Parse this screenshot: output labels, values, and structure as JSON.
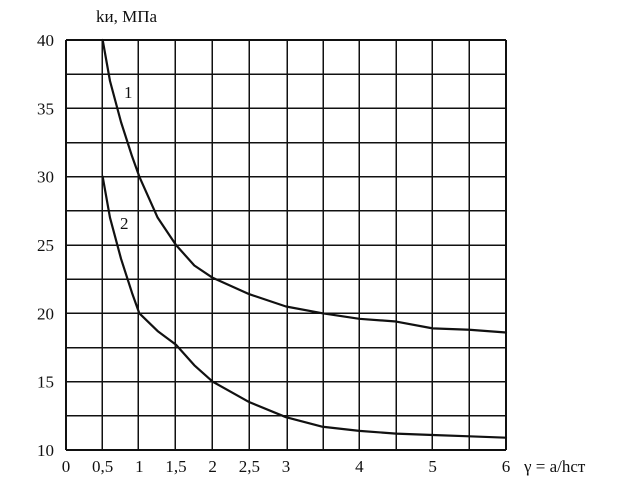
{
  "chart_data": {
    "type": "line",
    "title": "",
    "xlabel": "γ = a/hст",
    "ylabel": "kи, МПа",
    "xlim": [
      0,
      6
    ],
    "ylim": [
      10,
      40
    ],
    "grid": true,
    "legend": "none",
    "x_ticks": [
      {
        "value": 0,
        "label": "0"
      },
      {
        "value": 0.5,
        "label": "0,5"
      },
      {
        "value": 1,
        "label": "1"
      },
      {
        "value": 1.5,
        "label": "1,5"
      },
      {
        "value": 2,
        "label": "2"
      },
      {
        "value": 2.5,
        "label": "2,5"
      },
      {
        "value": 3,
        "label": "3"
      },
      {
        "value": 4,
        "label": "4"
      },
      {
        "value": 5,
        "label": "5"
      },
      {
        "value": 6,
        "label": "6"
      }
    ],
    "y_ticks": [
      {
        "value": 10,
        "label": "10"
      },
      {
        "value": 15,
        "label": "15"
      },
      {
        "value": 20,
        "label": "20"
      },
      {
        "value": 25,
        "label": "25"
      },
      {
        "value": 30,
        "label": "30"
      },
      {
        "value": 35,
        "label": "35"
      },
      {
        "value": 40,
        "label": "40"
      }
    ],
    "series": [
      {
        "label": "1",
        "color": "#111111",
        "points": [
          [
            0.5,
            40.0
          ],
          [
            0.6,
            37.0
          ],
          [
            0.75,
            34.0
          ],
          [
            0.9,
            31.5
          ],
          [
            1.0,
            30.0
          ],
          [
            1.25,
            27.0
          ],
          [
            1.5,
            25.0
          ],
          [
            1.75,
            23.5
          ],
          [
            2.0,
            22.6
          ],
          [
            2.5,
            21.4
          ],
          [
            3.0,
            20.5
          ],
          [
            3.5,
            20.0
          ],
          [
            4.0,
            19.6
          ],
          [
            4.5,
            19.4
          ],
          [
            5.0,
            18.9
          ],
          [
            5.5,
            18.8
          ],
          [
            6.0,
            18.6
          ]
        ]
      },
      {
        "label": "2",
        "color": "#111111",
        "points": [
          [
            0.5,
            30.0
          ],
          [
            0.6,
            27.0
          ],
          [
            0.75,
            24.0
          ],
          [
            0.9,
            21.5
          ],
          [
            1.0,
            20.0
          ],
          [
            1.25,
            18.7
          ],
          [
            1.5,
            17.7
          ],
          [
            1.75,
            16.2
          ],
          [
            2.0,
            15.0
          ],
          [
            2.5,
            13.5
          ],
          [
            3.0,
            12.4
          ],
          [
            3.5,
            11.7
          ],
          [
            4.0,
            11.4
          ],
          [
            4.5,
            11.2
          ],
          [
            5.0,
            11.1
          ],
          [
            5.5,
            11.0
          ],
          [
            6.0,
            10.9
          ]
        ]
      }
    ]
  }
}
